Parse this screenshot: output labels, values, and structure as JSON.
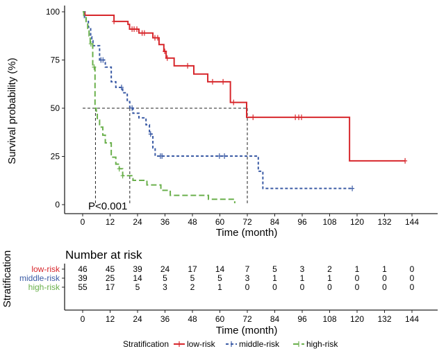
{
  "chart_data": {
    "type": "line",
    "subtype": "kaplan-meier",
    "ylabel": "Survival probability (%)",
    "xlabel": "Time (month)",
    "xlim": [
      0,
      144
    ],
    "ylim": [
      0,
      100
    ],
    "xticks": [
      "0",
      "12",
      "24",
      "36",
      "48",
      "60",
      "72",
      "84",
      "96",
      "108",
      "120",
      "132",
      "144"
    ],
    "yticks": [
      "0",
      "25",
      "50",
      "75",
      "100"
    ],
    "annotation": "P<0.001",
    "grid": false,
    "median_line": {
      "survival": 50,
      "medians": [
        5.6,
        20.6,
        72
      ]
    },
    "series": [
      {
        "name": "low-risk",
        "color": "#d7262b",
        "dash": "solid",
        "steps": [
          [
            0,
            100
          ],
          [
            1,
            98.2
          ],
          [
            13.7,
            95
          ],
          [
            19.8,
            93.5
          ],
          [
            20.5,
            91
          ],
          [
            24.6,
            89
          ],
          [
            30.7,
            86.5
          ],
          [
            33.4,
            83
          ],
          [
            35.5,
            79.5
          ],
          [
            36.5,
            76
          ],
          [
            40,
            72
          ],
          [
            48.6,
            67.7
          ],
          [
            54.7,
            63.7
          ],
          [
            64.6,
            53
          ],
          [
            71.7,
            45.3
          ],
          [
            116.7,
            22.7
          ]
        ],
        "end": 141,
        "censored": [
          13.7,
          21.6,
          22.5,
          23.7,
          26,
          27,
          31.6,
          32.8,
          35.9,
          37,
          45.9,
          56.8,
          61.4,
          66,
          74.5,
          93,
          94.5,
          95.7,
          141
        ]
      },
      {
        "name": "middle-risk",
        "color": "#3b5ba5",
        "dash": "dotted",
        "steps": [
          [
            0,
            100
          ],
          [
            0.8,
            97
          ],
          [
            1.5,
            95
          ],
          [
            2.5,
            92
          ],
          [
            3.5,
            87
          ],
          [
            4,
            85
          ],
          [
            4.5,
            82.4
          ],
          [
            7.4,
            75
          ],
          [
            9.9,
            71.3
          ],
          [
            12.5,
            63.7
          ],
          [
            14.5,
            60.8
          ],
          [
            17.5,
            58
          ],
          [
            19.5,
            53.4
          ],
          [
            20.6,
            50.1
          ],
          [
            22,
            47.4
          ],
          [
            24.6,
            45
          ],
          [
            27.7,
            41.4
          ],
          [
            29.2,
            36.6
          ],
          [
            30.7,
            29.4
          ],
          [
            31.7,
            25.2
          ],
          [
            76.8,
            17.3
          ],
          [
            78.8,
            8.4
          ]
        ],
        "end": 117.9,
        "censored": [
          8,
          8.9,
          17,
          21.6,
          29.7,
          34,
          34.7,
          59.8,
          62,
          117.9
        ]
      },
      {
        "name": "high-risk",
        "color": "#6ab04c",
        "dash": "dashed",
        "steps": [
          [
            0,
            100
          ],
          [
            0.5,
            97
          ],
          [
            1.5,
            94
          ],
          [
            2.2,
            90.6
          ],
          [
            2.8,
            87.5
          ],
          [
            3.3,
            83.4
          ],
          [
            4.4,
            71.3
          ],
          [
            5.4,
            50
          ],
          [
            5.9,
            48.5
          ],
          [
            6.4,
            43.8
          ],
          [
            7.4,
            40.2
          ],
          [
            8.8,
            36
          ],
          [
            9.9,
            32
          ],
          [
            12.5,
            24.6
          ],
          [
            14.5,
            21
          ],
          [
            16,
            18.6
          ],
          [
            17.5,
            15
          ],
          [
            22,
            12.6
          ],
          [
            28.1,
            10.2
          ],
          [
            34.2,
            7.4
          ],
          [
            38.3,
            4.8
          ],
          [
            55,
            2.8
          ],
          [
            66.5,
            0.7
          ]
        ],
        "end": 66.5,
        "censored": [
          3.6,
          5,
          16,
          17.5
        ]
      }
    ]
  },
  "risk_table": {
    "title": "Number at risk",
    "ylabel": "Stratification",
    "xlabel": "Time (month)",
    "times": [
      "0",
      "12",
      "24",
      "36",
      "48",
      "60",
      "72",
      "84",
      "96",
      "108",
      "120",
      "132",
      "144"
    ],
    "rows": [
      {
        "label": "low-risk",
        "color": "#d7262b",
        "values": [
          "46",
          "45",
          "39",
          "24",
          "17",
          "14",
          "7",
          "5",
          "3",
          "2",
          "1",
          "1",
          "0"
        ]
      },
      {
        "label": "middle-risk",
        "color": "#3b5ba5",
        "values": [
          "39",
          "25",
          "14",
          "5",
          "5",
          "5",
          "3",
          "1",
          "1",
          "1",
          "0",
          "0",
          "0"
        ]
      },
      {
        "label": "high-risk",
        "color": "#6ab04c",
        "values": [
          "55",
          "17",
          "5",
          "3",
          "2",
          "1",
          "0",
          "0",
          "0",
          "0",
          "0",
          "0",
          "0"
        ]
      }
    ]
  },
  "legend": {
    "title": "Stratification",
    "placement": "bottom",
    "items": [
      "low-risk",
      "middle-risk",
      "high-risk"
    ]
  }
}
